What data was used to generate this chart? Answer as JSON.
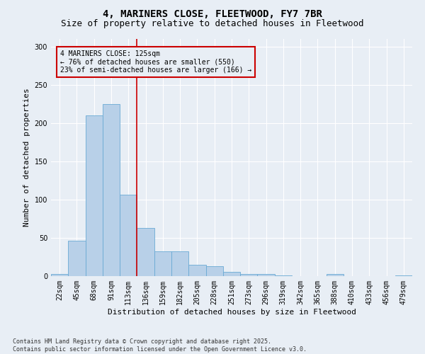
{
  "title_line1": "4, MARINERS CLOSE, FLEETWOOD, FY7 7BR",
  "title_line2": "Size of property relative to detached houses in Fleetwood",
  "xlabel": "Distribution of detached houses by size in Fleetwood",
  "ylabel": "Number of detached properties",
  "categories": [
    "22sqm",
    "45sqm",
    "68sqm",
    "91sqm",
    "113sqm",
    "136sqm",
    "159sqm",
    "182sqm",
    "205sqm",
    "228sqm",
    "251sqm",
    "273sqm",
    "296sqm",
    "319sqm",
    "342sqm",
    "365sqm",
    "388sqm",
    "410sqm",
    "433sqm",
    "456sqm",
    "479sqm"
  ],
  "values": [
    3,
    46,
    210,
    225,
    106,
    63,
    32,
    32,
    15,
    13,
    6,
    3,
    3,
    1,
    0,
    0,
    3,
    0,
    0,
    0,
    1
  ],
  "bar_color": "#b8d0e8",
  "bar_edge_color": "#6aaad4",
  "vline_color": "#cc0000",
  "annotation_text": "4 MARINERS CLOSE: 125sqm\n← 76% of detached houses are smaller (550)\n23% of semi-detached houses are larger (166) →",
  "annotation_box_color": "#cc0000",
  "ylim": [
    0,
    310
  ],
  "yticks": [
    0,
    50,
    100,
    150,
    200,
    250,
    300
  ],
  "bg_color": "#e8eef5",
  "footnote": "Contains HM Land Registry data © Crown copyright and database right 2025.\nContains public sector information licensed under the Open Government Licence v3.0.",
  "title_fontsize": 10,
  "subtitle_fontsize": 9,
  "axis_label_fontsize": 8,
  "tick_fontsize": 7,
  "annotation_fontsize": 7,
  "footnote_fontsize": 6
}
